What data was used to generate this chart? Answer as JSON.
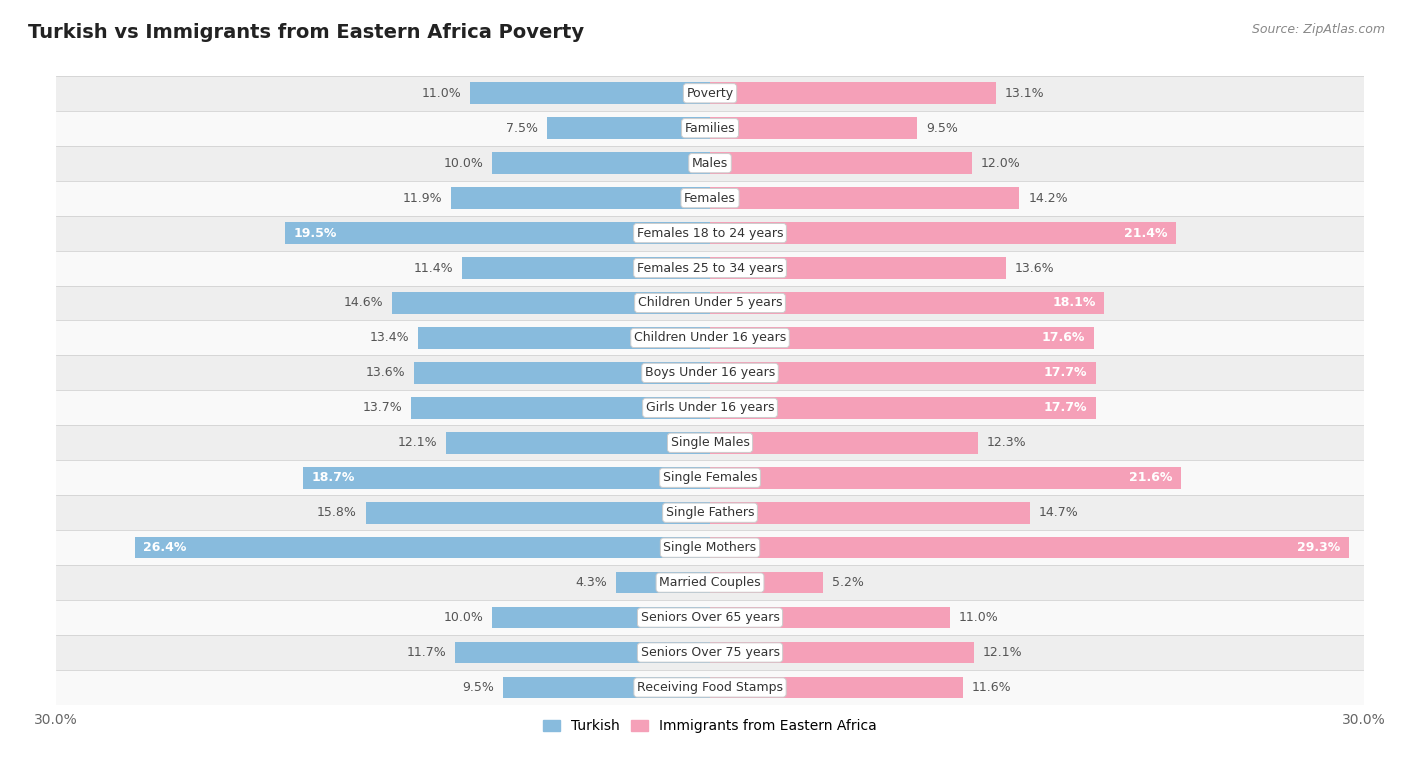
{
  "title": "Turkish vs Immigrants from Eastern Africa Poverty",
  "source": "Source: ZipAtlas.com",
  "categories": [
    "Poverty",
    "Families",
    "Males",
    "Females",
    "Females 18 to 24 years",
    "Females 25 to 34 years",
    "Children Under 5 years",
    "Children Under 16 years",
    "Boys Under 16 years",
    "Girls Under 16 years",
    "Single Males",
    "Single Females",
    "Single Fathers",
    "Single Mothers",
    "Married Couples",
    "Seniors Over 65 years",
    "Seniors Over 75 years",
    "Receiving Food Stamps"
  ],
  "turkish": [
    11.0,
    7.5,
    10.0,
    11.9,
    19.5,
    11.4,
    14.6,
    13.4,
    13.6,
    13.7,
    12.1,
    18.7,
    15.8,
    26.4,
    4.3,
    10.0,
    11.7,
    9.5
  ],
  "eastern_africa": [
    13.1,
    9.5,
    12.0,
    14.2,
    21.4,
    13.6,
    18.1,
    17.6,
    17.7,
    17.7,
    12.3,
    21.6,
    14.7,
    29.3,
    5.2,
    11.0,
    12.1,
    11.6
  ],
  "turkish_color": "#88bbdd",
  "eastern_africa_color": "#f5a0b8",
  "label_color_default": "#555555",
  "label_color_inbar": "#ffffff",
  "row_bg_odd": "#eeeeee",
  "row_bg_even": "#f9f9f9",
  "axis_max": 30.0,
  "bar_height": 0.62,
  "legend_turkish": "Turkish",
  "legend_eastern_africa": "Immigrants from Eastern Africa",
  "inbar_threshold": 16.5,
  "title_fontsize": 14,
  "label_fontsize": 9,
  "cat_fontsize": 9
}
